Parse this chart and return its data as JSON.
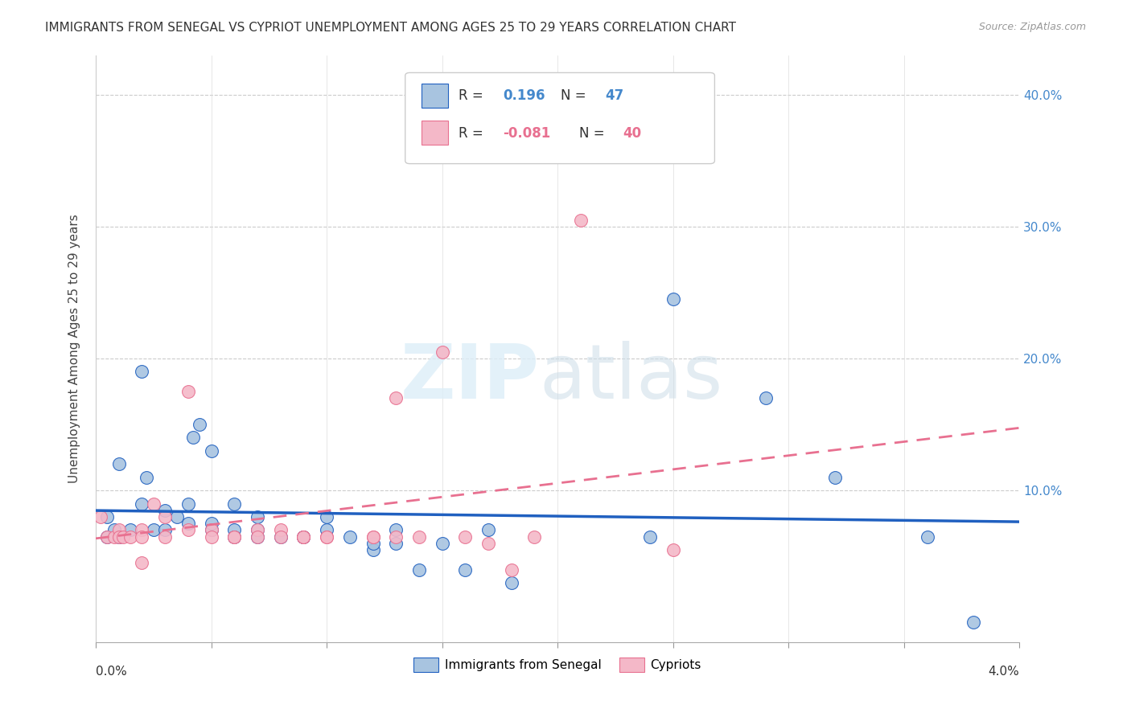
{
  "title": "IMMIGRANTS FROM SENEGAL VS CYPRIOT UNEMPLOYMENT AMONG AGES 25 TO 29 YEARS CORRELATION CHART",
  "source": "Source: ZipAtlas.com",
  "ylabel": "Unemployment Among Ages 25 to 29 years",
  "xlim": [
    0.0,
    0.04
  ],
  "ylim": [
    -0.015,
    0.43
  ],
  "blue_R": 0.196,
  "blue_N": 47,
  "pink_R": -0.081,
  "pink_N": 40,
  "blue_color": "#a8c4e0",
  "pink_color": "#f4b8c8",
  "blue_line_color": "#2060c0",
  "pink_line_color": "#e87090",
  "legend_label_blue": "Immigrants from Senegal",
  "legend_label_pink": "Cypriots",
  "blue_x": [
    0.0005,
    0.001,
    0.0015,
    0.002,
    0.0022,
    0.0025,
    0.003,
    0.003,
    0.0035,
    0.004,
    0.004,
    0.0042,
    0.0045,
    0.005,
    0.005,
    0.005,
    0.006,
    0.006,
    0.006,
    0.007,
    0.007,
    0.007,
    0.008,
    0.009,
    0.009,
    0.01,
    0.01,
    0.011,
    0.012,
    0.012,
    0.013,
    0.013,
    0.014,
    0.015,
    0.016,
    0.017,
    0.018,
    0.0005,
    0.0008,
    0.001,
    0.002,
    0.024,
    0.025,
    0.029,
    0.032,
    0.036,
    0.038
  ],
  "blue_y": [
    0.08,
    0.12,
    0.07,
    0.09,
    0.11,
    0.07,
    0.07,
    0.085,
    0.08,
    0.075,
    0.09,
    0.14,
    0.15,
    0.13,
    0.07,
    0.075,
    0.09,
    0.07,
    0.065,
    0.08,
    0.065,
    0.07,
    0.065,
    0.065,
    0.065,
    0.07,
    0.08,
    0.065,
    0.055,
    0.06,
    0.06,
    0.07,
    0.04,
    0.06,
    0.04,
    0.07,
    0.03,
    0.065,
    0.07,
    0.065,
    0.19,
    0.065,
    0.245,
    0.17,
    0.11,
    0.065,
    0.0
  ],
  "pink_x": [
    0.0002,
    0.0005,
    0.0008,
    0.001,
    0.001,
    0.0012,
    0.0015,
    0.002,
    0.002,
    0.002,
    0.0025,
    0.003,
    0.003,
    0.004,
    0.004,
    0.005,
    0.005,
    0.006,
    0.006,
    0.007,
    0.007,
    0.008,
    0.008,
    0.009,
    0.009,
    0.009,
    0.01,
    0.01,
    0.012,
    0.012,
    0.013,
    0.013,
    0.014,
    0.015,
    0.016,
    0.017,
    0.018,
    0.019,
    0.021,
    0.025
  ],
  "pink_y": [
    0.08,
    0.065,
    0.065,
    0.07,
    0.065,
    0.065,
    0.065,
    0.07,
    0.065,
    0.045,
    0.09,
    0.065,
    0.08,
    0.175,
    0.07,
    0.07,
    0.065,
    0.065,
    0.065,
    0.07,
    0.065,
    0.07,
    0.065,
    0.065,
    0.065,
    0.065,
    0.065,
    0.065,
    0.065,
    0.065,
    0.065,
    0.17,
    0.065,
    0.205,
    0.065,
    0.06,
    0.04,
    0.065,
    0.305,
    0.055
  ]
}
